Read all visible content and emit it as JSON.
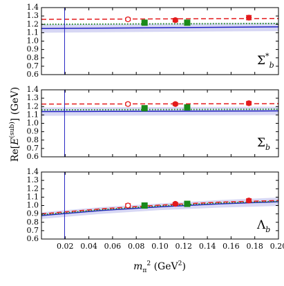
{
  "chart_data": [
    {
      "type": "line",
      "label": [
        {
          "text": "Σ"
        },
        {
          "text": "*",
          "shift": "super"
        },
        {
          "text": "b",
          "shift": "sub",
          "style": "italic"
        }
      ],
      "xlim": [
        0,
        0.2
      ],
      "ylim": [
        0.6,
        1.4
      ],
      "vline": 0.0195,
      "yticks": [
        0.6,
        0.7,
        0.8,
        0.9,
        {
          "value": 1,
          "label": "1.0"
        },
        1.1,
        1.2,
        1.3,
        1.4
      ],
      "curves": [
        {
          "color": "#2020c0",
          "style": "solid",
          "x": [
            0,
            0.05,
            0.1,
            0.15,
            0.2
          ],
          "values": [
            1.15,
            1.155,
            1.16,
            1.165,
            1.17
          ],
          "errors": [
            0.05,
            0.05,
            0.05,
            0.05,
            0.05
          ]
        },
        {
          "color": "#1a8a1a",
          "style": "dotted",
          "x": [
            0,
            0.05,
            0.1,
            0.15,
            0.2
          ],
          "values": [
            1.2,
            1.203,
            1.206,
            1.208,
            1.21
          ]
        },
        {
          "color": "#e31a1c",
          "style": "dashed",
          "x": [
            0,
            0.05,
            0.1,
            0.15,
            0.2
          ],
          "values": [
            1.26,
            1.262,
            1.265,
            1.268,
            1.27
          ]
        }
      ],
      "points": [
        {
          "color": "#e31a1c",
          "marker": "circle",
          "filled": false,
          "x": [
            0.073
          ],
          "values": [
            1.26
          ],
          "errors": [
            0.015
          ]
        },
        {
          "color": "#1a8a1a",
          "marker": "square",
          "filled": true,
          "x": [
            0.087,
            0.123
          ],
          "values": [
            1.22,
            1.22
          ],
          "errors": [
            0.025,
            0.025
          ]
        },
        {
          "color": "#e31a1c",
          "marker": "circle",
          "filled": true,
          "x": [
            0.113,
            0.175
          ],
          "values": [
            1.25,
            1.28
          ],
          "errors": [
            0.02,
            0.025
          ]
        }
      ]
    },
    {
      "type": "line",
      "label": [
        {
          "text": "Σ"
        },
        {
          "text": "b",
          "shift": "sub",
          "style": "italic"
        }
      ],
      "xlim": [
        0,
        0.2
      ],
      "ylim": [
        0.6,
        1.4
      ],
      "vline": 0.0195,
      "yticks": [
        0.6,
        0.7,
        0.8,
        0.9,
        {
          "value": 1,
          "label": "1.0"
        },
        1.1,
        1.2,
        1.3,
        1.4
      ],
      "curves": [
        {
          "color": "#2020c0",
          "style": "solid",
          "x": [
            0,
            0.05,
            0.1,
            0.15,
            0.2
          ],
          "values": [
            1.14,
            1.142,
            1.144,
            1.146,
            1.148
          ],
          "errors": [
            0.05,
            0.05,
            0.05,
            0.05,
            0.05
          ]
        },
        {
          "color": "#1a8a1a",
          "style": "dotted",
          "x": [
            0,
            0.05,
            0.1,
            0.15,
            0.2
          ],
          "values": [
            1.16,
            1.162,
            1.164,
            1.166,
            1.168
          ]
        },
        {
          "color": "#e31a1c",
          "style": "dashed",
          "x": [
            0,
            0.05,
            0.1,
            0.15,
            0.2
          ],
          "values": [
            1.23,
            1.231,
            1.232,
            1.233,
            1.234
          ]
        }
      ],
      "points": [
        {
          "color": "#e31a1c",
          "marker": "circle",
          "filled": false,
          "x": [
            0.073
          ],
          "values": [
            1.23
          ],
          "errors": [
            0.015
          ]
        },
        {
          "color": "#1a8a1a",
          "marker": "square",
          "filled": true,
          "x": [
            0.087,
            0.123
          ],
          "values": [
            1.18,
            1.19
          ],
          "errors": [
            0.025,
            0.025
          ]
        },
        {
          "color": "#e31a1c",
          "marker": "circle",
          "filled": true,
          "x": [
            0.113,
            0.175
          ],
          "values": [
            1.23,
            1.24
          ],
          "errors": [
            0.015,
            0.02
          ]
        }
      ]
    },
    {
      "type": "line",
      "label": [
        {
          "text": "Λ"
        },
        {
          "text": "b",
          "shift": "sub",
          "style": "italic"
        }
      ],
      "xlim": [
        0,
        0.2
      ],
      "ylim": [
        0.6,
        1.4
      ],
      "vline": 0.0195,
      "yticks": [
        0.6,
        0.7,
        0.8,
        0.9,
        {
          "value": 1,
          "label": "1.0"
        },
        1.1,
        1.2,
        1.3,
        1.4
      ],
      "xticks": [
        0.02,
        0.04,
        0.06,
        0.08,
        {
          "value": 0.1,
          "label": "0.10"
        },
        0.12,
        0.14,
        0.16,
        0.18,
        {
          "value": 0.2,
          "label": "0.20"
        }
      ],
      "curves": [
        {
          "color": "#2020c0",
          "style": "solid",
          "x": [
            0,
            0.05,
            0.1,
            0.15,
            0.2
          ],
          "values": [
            0.88,
            0.94,
            0.985,
            1.02,
            1.045
          ],
          "errors": [
            0.04,
            0.04,
            0.04,
            0.045,
            0.05
          ]
        },
        {
          "color": "#1a8a1a",
          "style": "dotted",
          "x": [
            0,
            0.05,
            0.1,
            0.15,
            0.2
          ],
          "values": [
            0.89,
            0.95,
            0.995,
            1.03,
            1.05
          ]
        },
        {
          "color": "#e31a1c",
          "style": "dashed",
          "x": [
            0,
            0.05,
            0.1,
            0.15,
            0.2
          ],
          "values": [
            0.9,
            0.96,
            1.005,
            1.04,
            1.06
          ]
        }
      ],
      "points": [
        {
          "color": "#e31a1c",
          "marker": "circle",
          "filled": false,
          "x": [
            0.073
          ],
          "values": [
            1.0
          ],
          "errors": [
            0.02
          ]
        },
        {
          "color": "#1a8a1a",
          "marker": "square",
          "filled": true,
          "x": [
            0.087,
            0.123
          ],
          "values": [
            1.0,
            1.02
          ],
          "errors": [
            0.025,
            0.02
          ]
        },
        {
          "color": "#e31a1c",
          "marker": "circle",
          "filled": true,
          "x": [
            0.113,
            0.175
          ],
          "values": [
            1.02,
            1.06
          ],
          "errors": [
            0.015,
            0.02
          ]
        }
      ]
    }
  ],
  "y_label": [
    {
      "text": "Re["
    },
    {
      "text": "E",
      "style": "italic"
    },
    {
      "text": "(sub)",
      "shift": "super"
    },
    {
      "text": "]  (GeV)"
    }
  ],
  "x_label": [
    {
      "text": "m",
      "style": "italic"
    },
    {
      "text": "π",
      "shift": "sub"
    },
    {
      "text": "2",
      "shift": "super"
    },
    {
      "text": "  (GeV"
    },
    {
      "text": "2",
      "shift": "super"
    },
    {
      "text": ")"
    }
  ]
}
